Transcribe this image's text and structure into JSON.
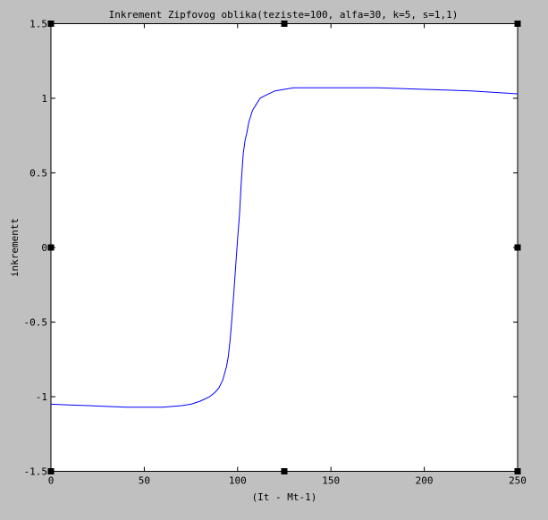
{
  "window": {
    "background_color": "#c0c0c0",
    "plot_background_color": "#ffffff"
  },
  "chart_data": {
    "type": "line",
    "title": "Inkrement Zipfovog oblika(teziste=100, alfa=30, k=5, s=1,1)",
    "xlabel": "(It - Mt-1)",
    "ylabel": "inkrementt",
    "xlim": [
      0,
      250
    ],
    "ylim": [
      -1.5,
      1.5
    ],
    "xticks": [
      0,
      50,
      100,
      150,
      200,
      250
    ],
    "xtick_labels": [
      "0",
      "50",
      "100",
      "150",
      "200",
      "250"
    ],
    "yticks": [
      -1.5,
      -1,
      -0.5,
      0,
      0.5,
      1,
      1.5
    ],
    "ytick_labels": [
      "-1.5",
      "-1",
      "-0.5",
      "0",
      "0.5",
      "1",
      "1.5"
    ],
    "grid": false,
    "line_color": "#0000ff",
    "series": [
      {
        "x": [
          0,
          10,
          20,
          30,
          40,
          50,
          60,
          70,
          75,
          80,
          85,
          88,
          90,
          92,
          94,
          95,
          96,
          97,
          98,
          99,
          100,
          101,
          102,
          103,
          104,
          105,
          106,
          108,
          110,
          112,
          115,
          120,
          125,
          130,
          140,
          150,
          175,
          200,
          225,
          250
        ],
        "y": [
          -1.05,
          -1.055,
          -1.06,
          -1.065,
          -1.07,
          -1.07,
          -1.07,
          -1.06,
          -1.05,
          -1.03,
          -1.0,
          -0.97,
          -0.94,
          -0.89,
          -0.8,
          -0.73,
          -0.62,
          -0.47,
          -0.3,
          -0.12,
          0.06,
          0.22,
          0.45,
          0.63,
          0.72,
          0.77,
          0.84,
          0.92,
          0.96,
          1.0,
          1.02,
          1.05,
          1.06,
          1.07,
          1.07,
          1.07,
          1.07,
          1.06,
          1.05,
          1.03
        ]
      }
    ]
  }
}
